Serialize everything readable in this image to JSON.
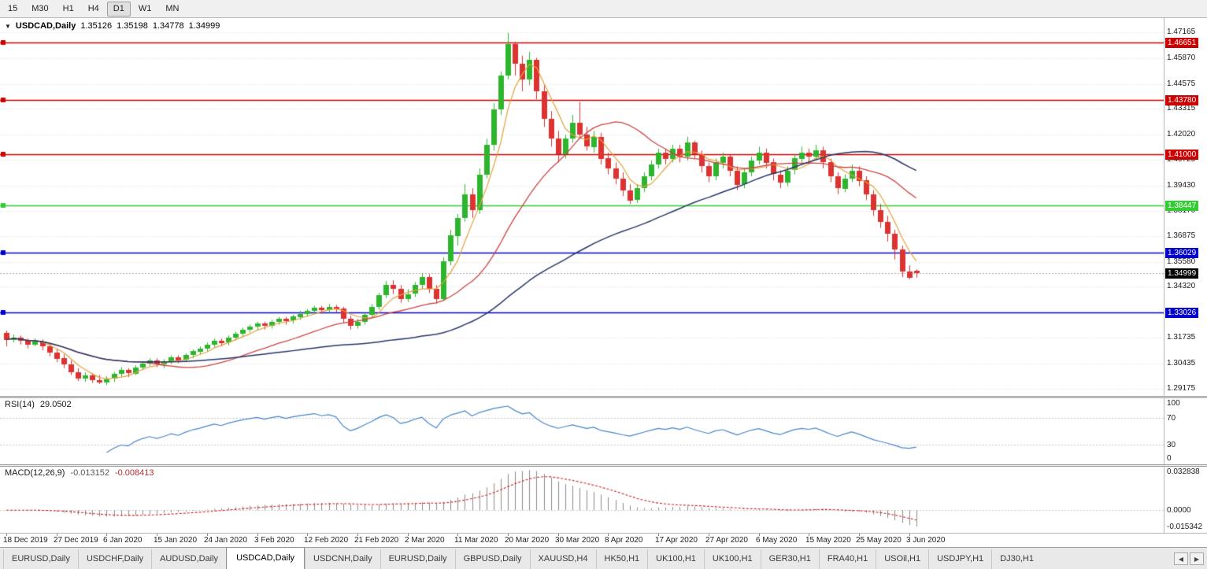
{
  "toolbar": {
    "timeframes": [
      "15",
      "M30",
      "H1",
      "H4",
      "D1",
      "W1",
      "MN"
    ],
    "active": "D1"
  },
  "chart_header": {
    "caret": "▼",
    "symbol_label": "USDCAD,Daily",
    "open": "1.35126",
    "high": "1.35198",
    "low": "1.34778",
    "close": "1.34999"
  },
  "rsi_header": {
    "label": "RSI(14)",
    "value": "29.0502"
  },
  "macd_header": {
    "label": "MACD(12,26,9)",
    "main": "-0.013152",
    "signal": "-0.008413"
  },
  "price_axis": {
    "grid_labels": [
      "1.47165",
      "1.45870",
      "1.44575",
      "1.43315",
      "1.42020",
      "1.40725",
      "1.39430",
      "1.38170",
      "1.36875",
      "1.35580",
      "1.34320",
      "1.31735",
      "1.30435",
      "1.29175"
    ]
  },
  "rsi_axis": {
    "labels": [
      {
        "label": "100",
        "value": 100
      },
      {
        "label": "70",
        "value": 70
      },
      {
        "label": "30",
        "value": 30
      },
      {
        "label": "0",
        "value": 0
      }
    ],
    "guide_levels": [
      70,
      30
    ]
  },
  "macd_axis": {
    "labels": [
      {
        "label": "0.032838",
        "value": 0.032838
      },
      {
        "label": "0.0000",
        "value": 0
      },
      {
        "label": "-0.015342",
        "value": -0.015342
      }
    ]
  },
  "colors": {
    "bull": "#2eb52e",
    "bear": "#dc3232",
    "ma_fast": "#e2a13c",
    "ma_mid": "#cc4444",
    "ma_slow": "#273668",
    "grid": "#dcdcdc",
    "level_red": "#cc0000",
    "level_green": "#33cc33",
    "level_blue": "#0000cc",
    "current_price_line": "#a8a8a8",
    "rsi_line": "#4a86c8",
    "rsi_guide": "#c6c6c6",
    "macd_hist": "#8a8a8a",
    "macd_signal": "#cc2222"
  },
  "chart_data": {
    "type": "candlestick",
    "symbol": "USDCAD",
    "period": "Daily",
    "title": "USDCAD,Daily",
    "price_range": [
      1.288,
      1.479
    ],
    "rsi_range": [
      0,
      100
    ],
    "macd_range": [
      -0.0185,
      0.0355
    ],
    "horizontal_levels": [
      {
        "label": "1.46651",
        "value": 1.46651,
        "color": "#cc0000",
        "type": "resistance"
      },
      {
        "label": "1.43780",
        "value": 1.4378,
        "color": "#cc0000",
        "type": "resistance"
      },
      {
        "label": "1.41000",
        "value": 1.41,
        "color": "#cc0000",
        "type": "resistance"
      },
      {
        "label": "1.38447",
        "value": 1.38447,
        "color": "#33cc33",
        "type": "support"
      },
      {
        "label": "1.36029",
        "value": 1.36029,
        "color": "#0000cc",
        "type": "support"
      },
      {
        "label": "1.33026",
        "value": 1.33026,
        "color": "#0000cc",
        "type": "support"
      }
    ],
    "current_price": {
      "label": "1.34999",
      "value": 1.34999,
      "color": "#000000"
    },
    "overlays": [
      {
        "name": "MA fast",
        "method": "sma",
        "period": 5,
        "color": "#e2a13c"
      },
      {
        "name": "MA mid",
        "method": "sma",
        "period": 20,
        "color": "#cc4444"
      },
      {
        "name": "MA slow",
        "method": "sma",
        "period": 55,
        "color": "#273668"
      }
    ],
    "indicators": [
      {
        "name": "RSI",
        "period": 14,
        "last_value": "29.0502",
        "guide_levels": [
          70,
          30
        ]
      },
      {
        "name": "MACD",
        "fast": 12,
        "slow": 26,
        "signal": 9,
        "last_main": "-0.013152",
        "last_signal": "-0.008413"
      }
    ],
    "date_labels": [
      {
        "i": 0,
        "t": "18 Dec 2019"
      },
      {
        "i": 7,
        "t": "27 Dec 2019"
      },
      {
        "i": 14,
        "t": "6 Jan 2020"
      },
      {
        "i": 21,
        "t": "15 Jan 2020"
      },
      {
        "i": 28,
        "t": "24 Jan 2020"
      },
      {
        "i": 35,
        "t": "3 Feb 2020"
      },
      {
        "i": 42,
        "t": "12 Feb 2020"
      },
      {
        "i": 49,
        "t": "21 Feb 2020"
      },
      {
        "i": 56,
        "t": "2 Mar 2020"
      },
      {
        "i": 63,
        "t": "11 Mar 2020"
      },
      {
        "i": 70,
        "t": "20 Mar 2020"
      },
      {
        "i": 77,
        "t": "30 Mar 2020"
      },
      {
        "i": 84,
        "t": "8 Apr 2020"
      },
      {
        "i": 91,
        "t": "17 Apr 2020"
      },
      {
        "i": 98,
        "t": "27 Apr 2020"
      },
      {
        "i": 105,
        "t": "6 May 2020"
      },
      {
        "i": 112,
        "t": "15 May 2020"
      },
      {
        "i": 119,
        "t": "25 May 2020"
      },
      {
        "i": 126,
        "t": "3 Jun 2020"
      }
    ],
    "candles": [
      [
        1.32,
        1.321,
        1.313,
        1.3165
      ],
      [
        1.3165,
        1.319,
        1.315,
        1.3175
      ],
      [
        1.3175,
        1.3185,
        1.314,
        1.316
      ],
      [
        1.316,
        1.317,
        1.312,
        1.314
      ],
      [
        1.314,
        1.317,
        1.313,
        1.3155
      ],
      [
        1.3155,
        1.3165,
        1.311,
        1.313
      ],
      [
        1.313,
        1.3145,
        1.308,
        1.31
      ],
      [
        1.31,
        1.3115,
        1.305,
        1.307
      ],
      [
        1.307,
        1.309,
        1.302,
        1.304
      ],
      [
        1.304,
        1.306,
        1.2985,
        1.3
      ],
      [
        1.3,
        1.302,
        1.2955,
        1.297
      ],
      [
        1.297,
        1.3,
        1.295,
        1.2985
      ],
      [
        1.2985,
        1.2995,
        1.2945,
        1.296
      ],
      [
        1.296,
        1.2985,
        1.294,
        1.295
      ],
      [
        1.295,
        1.298,
        1.2935,
        1.2965
      ],
      [
        1.2965,
        1.3,
        1.295,
        1.299
      ],
      [
        1.299,
        1.3025,
        1.2975,
        1.301
      ],
      [
        1.301,
        1.302,
        1.2975,
        1.2995
      ],
      [
        1.2995,
        1.3035,
        1.2985,
        1.3025
      ],
      [
        1.3025,
        1.3055,
        1.301,
        1.3045
      ],
      [
        1.3045,
        1.307,
        1.303,
        1.306
      ],
      [
        1.306,
        1.307,
        1.3025,
        1.304
      ],
      [
        1.304,
        1.3065,
        1.302,
        1.3055
      ],
      [
        1.3055,
        1.3085,
        1.304,
        1.3075
      ],
      [
        1.3075,
        1.3085,
        1.3045,
        1.306
      ],
      [
        1.306,
        1.3095,
        1.305,
        1.3085
      ],
      [
        1.3085,
        1.3115,
        1.307,
        1.3105
      ],
      [
        1.3105,
        1.313,
        1.309,
        1.312
      ],
      [
        1.312,
        1.315,
        1.3105,
        1.314
      ],
      [
        1.314,
        1.317,
        1.3125,
        1.316
      ],
      [
        1.316,
        1.317,
        1.313,
        1.315
      ],
      [
        1.315,
        1.3185,
        1.3135,
        1.3175
      ],
      [
        1.3175,
        1.3205,
        1.316,
        1.3195
      ],
      [
        1.3195,
        1.3225,
        1.318,
        1.3215
      ],
      [
        1.3215,
        1.324,
        1.32,
        1.323
      ],
      [
        1.323,
        1.3255,
        1.3215,
        1.3245
      ],
      [
        1.3245,
        1.3255,
        1.3215,
        1.3235
      ],
      [
        1.3235,
        1.3265,
        1.322,
        1.3255
      ],
      [
        1.3255,
        1.328,
        1.324,
        1.327
      ],
      [
        1.327,
        1.328,
        1.324,
        1.326
      ],
      [
        1.326,
        1.329,
        1.3245,
        1.328
      ],
      [
        1.328,
        1.331,
        1.3265,
        1.3295
      ],
      [
        1.3295,
        1.332,
        1.328,
        1.331
      ],
      [
        1.331,
        1.3335,
        1.3295,
        1.3325
      ],
      [
        1.3325,
        1.3335,
        1.3295,
        1.3315
      ],
      [
        1.3315,
        1.3345,
        1.33,
        1.333
      ],
      [
        1.333,
        1.334,
        1.33,
        1.332
      ],
      [
        1.332,
        1.333,
        1.325,
        1.327
      ],
      [
        1.327,
        1.3285,
        1.3215,
        1.3235
      ],
      [
        1.3235,
        1.327,
        1.322,
        1.3255
      ],
      [
        1.3255,
        1.33,
        1.324,
        1.329
      ],
      [
        1.329,
        1.3345,
        1.3275,
        1.333
      ],
      [
        1.333,
        1.34,
        1.3315,
        1.339
      ],
      [
        1.339,
        1.346,
        1.3375,
        1.344
      ],
      [
        1.344,
        1.3465,
        1.3395,
        1.342
      ],
      [
        1.342,
        1.344,
        1.335,
        1.337
      ],
      [
        1.337,
        1.342,
        1.3355,
        1.3395
      ],
      [
        1.3395,
        1.3455,
        1.338,
        1.344
      ],
      [
        1.344,
        1.35,
        1.342,
        1.348
      ],
      [
        1.348,
        1.3495,
        1.34,
        1.342
      ],
      [
        1.342,
        1.344,
        1.3345,
        1.337
      ],
      [
        1.337,
        1.358,
        1.336,
        1.356
      ],
      [
        1.356,
        1.372,
        1.354,
        1.369
      ],
      [
        1.369,
        1.38,
        1.364,
        1.378
      ],
      [
        1.378,
        1.395,
        1.376,
        1.39
      ],
      [
        1.39,
        1.393,
        1.378,
        1.382
      ],
      [
        1.382,
        1.403,
        1.38,
        1.4
      ],
      [
        1.4,
        1.418,
        1.398,
        1.415
      ],
      [
        1.415,
        1.436,
        1.412,
        1.433
      ],
      [
        1.433,
        1.452,
        1.43,
        1.45
      ],
      [
        1.45,
        1.4716,
        1.448,
        1.466
      ],
      [
        1.466,
        1.467,
        1.45,
        1.456
      ],
      [
        1.456,
        1.46,
        1.442,
        1.448
      ],
      [
        1.448,
        1.462,
        1.445,
        1.458
      ],
      [
        1.458,
        1.459,
        1.438,
        1.442
      ],
      [
        1.442,
        1.445,
        1.424,
        1.428
      ],
      [
        1.428,
        1.432,
        1.414,
        1.418
      ],
      [
        1.418,
        1.422,
        1.406,
        1.41
      ],
      [
        1.41,
        1.42,
        1.408,
        1.418
      ],
      [
        1.418,
        1.43,
        1.416,
        1.426
      ],
      [
        1.426,
        1.4366,
        1.418,
        1.42
      ],
      [
        1.42,
        1.424,
        1.412,
        1.414
      ],
      [
        1.414,
        1.422,
        1.411,
        1.419
      ],
      [
        1.419,
        1.421,
        1.405,
        1.408
      ],
      [
        1.408,
        1.411,
        1.4,
        1.403
      ],
      [
        1.403,
        1.406,
        1.395,
        1.398
      ],
      [
        1.398,
        1.401,
        1.389,
        1.392
      ],
      [
        1.392,
        1.395,
        1.385,
        1.387
      ],
      [
        1.387,
        1.395,
        1.3855,
        1.393
      ],
      [
        1.393,
        1.401,
        1.391,
        1.399
      ],
      [
        1.399,
        1.407,
        1.397,
        1.405
      ],
      [
        1.405,
        1.413,
        1.403,
        1.411
      ],
      [
        1.411,
        1.413,
        1.405,
        1.408
      ],
      [
        1.408,
        1.415,
        1.406,
        1.413
      ],
      [
        1.413,
        1.415,
        1.406,
        1.409
      ],
      [
        1.409,
        1.419,
        1.407,
        1.416
      ],
      [
        1.416,
        1.417,
        1.408,
        1.41
      ],
      [
        1.41,
        1.412,
        1.401,
        1.404
      ],
      [
        1.404,
        1.406,
        1.396,
        1.399
      ],
      [
        1.399,
        1.408,
        1.397,
        1.406
      ],
      [
        1.406,
        1.411,
        1.403,
        1.409
      ],
      [
        1.409,
        1.41,
        1.399,
        1.402
      ],
      [
        1.402,
        1.404,
        1.392,
        1.395
      ],
      [
        1.395,
        1.403,
        1.393,
        1.401
      ],
      [
        1.401,
        1.409,
        1.399,
        1.407
      ],
      [
        1.407,
        1.414,
        1.405,
        1.411
      ],
      [
        1.411,
        1.413,
        1.403,
        1.406
      ],
      [
        1.406,
        1.408,
        1.397,
        1.4
      ],
      [
        1.4,
        1.402,
        1.393,
        1.396
      ],
      [
        1.396,
        1.404,
        1.394,
        1.402
      ],
      [
        1.402,
        1.41,
        1.4,
        1.408
      ],
      [
        1.408,
        1.414,
        1.406,
        1.411
      ],
      [
        1.411,
        1.413,
        1.406,
        1.409
      ],
      [
        1.409,
        1.415,
        1.407,
        1.412
      ],
      [
        1.412,
        1.414,
        1.403,
        1.406
      ],
      [
        1.406,
        1.408,
        1.396,
        1.399
      ],
      [
        1.399,
        1.401,
        1.39,
        1.393
      ],
      [
        1.393,
        1.4,
        1.391,
        1.398
      ],
      [
        1.398,
        1.405,
        1.396,
        1.402
      ],
      [
        1.402,
        1.404,
        1.394,
        1.397
      ],
      [
        1.397,
        1.399,
        1.387,
        1.39
      ],
      [
        1.39,
        1.392,
        1.379,
        1.382
      ],
      [
        1.382,
        1.385,
        1.373,
        1.376
      ],
      [
        1.376,
        1.379,
        1.366,
        1.37
      ],
      [
        1.37,
        1.372,
        1.357,
        1.362
      ],
      [
        1.362,
        1.364,
        1.348,
        1.351
      ],
      [
        1.351,
        1.354,
        1.347,
        1.348
      ],
      [
        1.35126,
        1.35198,
        1.34778,
        1.34999
      ]
    ]
  },
  "tabbar": {
    "scroll_left": "◀",
    "scroll_right": "▶",
    "tabs": [
      {
        "label": "EURUSD,Daily",
        "active": false
      },
      {
        "label": "USDCHF,Daily",
        "active": false
      },
      {
        "label": "AUDUSD,Daily",
        "active": false
      },
      {
        "label": "USDCAD,Daily",
        "active": true
      },
      {
        "label": "USDCNH,Daily",
        "active": false
      },
      {
        "label": "EURUSD,Daily",
        "active": false
      },
      {
        "label": "GBPUSD,Daily",
        "active": false
      },
      {
        "label": "XAUUSD,H4",
        "active": false
      },
      {
        "label": "HK50,H1",
        "active": false
      },
      {
        "label": "UK100,H1",
        "active": false
      },
      {
        "label": "UK100,H1",
        "active": false
      },
      {
        "label": "GER30,H1",
        "active": false
      },
      {
        "label": "FRA40,H1",
        "active": false
      },
      {
        "label": "USOil,H1",
        "active": false
      },
      {
        "label": "USDJPY,H1",
        "active": false
      },
      {
        "label": "DJ30,H1",
        "active": false
      }
    ]
  }
}
